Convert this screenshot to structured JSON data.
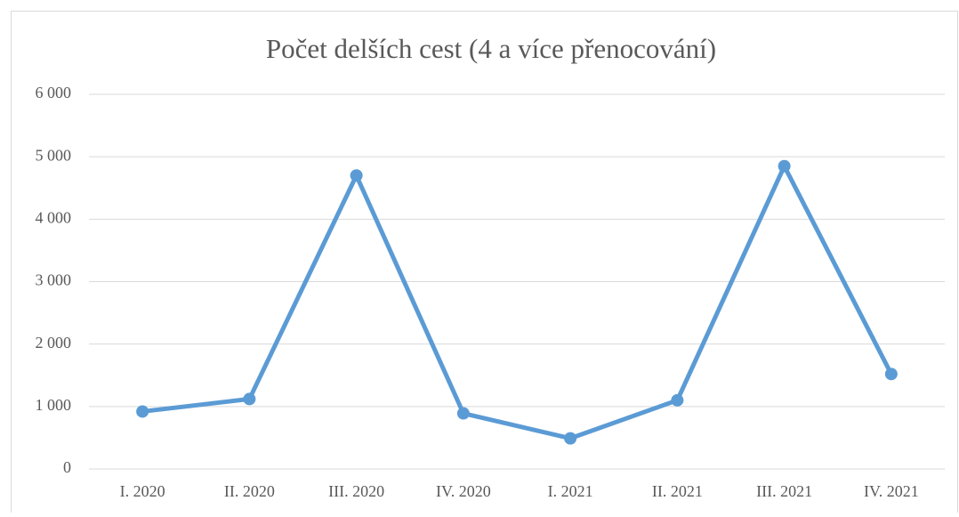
{
  "chart_data": {
    "type": "line",
    "title": "Počet delších cest (4 a více přenocování)",
    "categories": [
      "I. 2020",
      "II. 2020",
      "III. 2020",
      "IV. 2020",
      "I. 2021",
      "II. 2021",
      "III. 2021",
      "IV. 2021"
    ],
    "series": [
      {
        "name": "Počet delších cest",
        "color": "#5b9bd5",
        "values": [
          920,
          1120,
          4700,
          890,
          490,
          1100,
          4850,
          1520
        ]
      }
    ],
    "ylim": [
      0,
      6000
    ],
    "yticks": [
      0,
      {
        "value": 1000,
        "label": "1 000"
      },
      {
        "value": 2000,
        "label": "2 000"
      },
      {
        "value": 3000,
        "label": "3 000"
      },
      {
        "value": 4000,
        "label": "4 000"
      },
      {
        "value": 5000,
        "label": "5 000"
      },
      {
        "value": 6000,
        "label": "6 000"
      }
    ],
    "grid": true
  }
}
